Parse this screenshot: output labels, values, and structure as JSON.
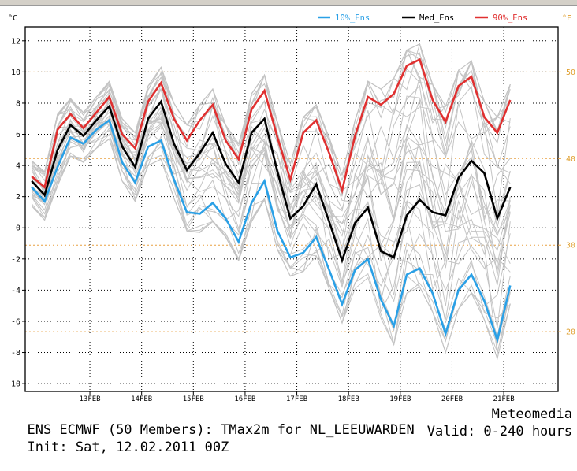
{
  "chart_data": {
    "type": "line",
    "y_unit_left": "°C",
    "y_unit_right": "°F",
    "ylim": [
      -10.5,
      12.9
    ],
    "y_ticks": [
      -10,
      -8,
      -6,
      -4,
      -2,
      0,
      2,
      4,
      6,
      8,
      10,
      12
    ],
    "f_ticks": [
      20,
      30,
      40,
      50
    ],
    "xlim": [
      0,
      20.6
    ],
    "x_ticks": [
      {
        "t": 2.5,
        "label": "13FEB"
      },
      {
        "t": 4.5,
        "label": "14FEB"
      },
      {
        "t": 6.5,
        "label": "15FEB"
      },
      {
        "t": 8.5,
        "label": "16FEB"
      },
      {
        "t": 10.5,
        "label": "17FEB"
      },
      {
        "t": 12.5,
        "label": "18FEB"
      },
      {
        "t": 14.5,
        "label": "19FEB"
      },
      {
        "t": 16.5,
        "label": "20FEB"
      },
      {
        "t": 18.5,
        "label": "21FEB"
      }
    ],
    "grid": true,
    "legend_position": "top",
    "series": [
      {
        "name": "10%_Ens",
        "color": "#2aa0e6",
        "values": [
          2.6,
          1.7,
          3.9,
          5.8,
          5.4,
          6.3,
          6.9,
          4.2,
          2.9,
          5.2,
          5.6,
          3.1,
          1.0,
          0.9,
          1.6,
          0.6,
          -0.9,
          1.6,
          3.0,
          -0.2,
          -1.9,
          -1.6,
          -0.6,
          -2.7,
          -4.9,
          -2.7,
          -2.0,
          -4.6,
          -6.3,
          -3.0,
          -2.6,
          -4.2,
          -6.8,
          -4.0,
          -3.0,
          -4.7,
          -7.2,
          -3.7
        ]
      },
      {
        "name": "Med_Ens",
        "color": "#000000",
        "values": [
          3.0,
          2.1,
          5.0,
          6.6,
          5.9,
          6.9,
          7.8,
          5.2,
          3.9,
          7.0,
          8.1,
          5.4,
          3.7,
          4.8,
          6.1,
          4.1,
          2.9,
          6.1,
          7.0,
          3.6,
          0.6,
          1.4,
          2.8,
          0.4,
          -2.1,
          0.3,
          1.3,
          -1.5,
          -1.9,
          0.8,
          1.8,
          1.0,
          0.8,
          3.2,
          4.3,
          3.5,
          0.6,
          2.6
        ]
      },
      {
        "name": "90%_Ens",
        "color": "#e03030",
        "values": [
          3.3,
          2.6,
          6.3,
          7.3,
          6.4,
          7.4,
          8.4,
          6.0,
          5.1,
          8.1,
          9.3,
          7.0,
          5.6,
          6.9,
          7.9,
          5.6,
          4.4,
          7.6,
          8.8,
          5.8,
          3.1,
          6.1,
          6.9,
          4.8,
          2.4,
          5.9,
          8.4,
          7.9,
          8.6,
          10.4,
          10.8,
          8.2,
          6.8,
          9.1,
          9.7,
          7.1,
          6.1,
          8.2
        ]
      }
    ]
  },
  "footer": {
    "line1_left": "ENS ECMWF (50 Members): TMax2m for NL_LEEUWARDEN",
    "line1_right": "Meteomedia",
    "line2_left": "Init: Sat, 12.02.2011 00Z",
    "line2_right": "Valid: 0-240 hours"
  }
}
